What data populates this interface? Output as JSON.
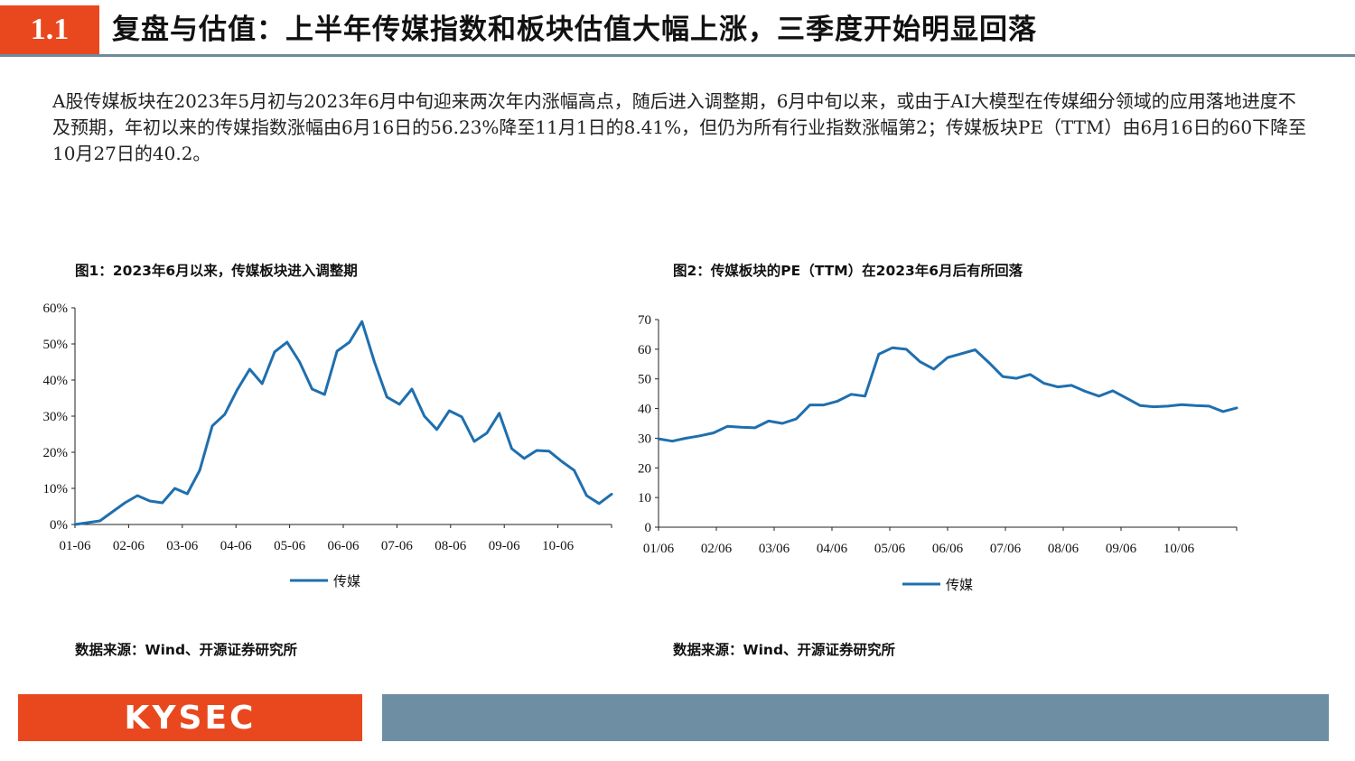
{
  "header": {
    "section_number": "1.1",
    "title": "复盘与估值：上半年传媒指数和板块估值大幅上涨，三季度开始明显回落"
  },
  "intro_text": "A股传媒板块在2023年5月初与2023年6月中旬迎来两次年内涨幅高点，随后进入调整期，6月中旬以来，或由于AI大模型在传媒细分领域的应用落地进度不及预期，年初以来的传媒指数涨幅由6月16日的56.23%降至11月1日的8.41%，但仍为所有行业指数涨幅第2；传媒板块PE（TTM）由6月16日的60下降至10月27日的40.2。",
  "figures": {
    "fig1_caption": "图1：2023年6月以来，传媒板块进入调整期",
    "fig2_caption": "图2：传媒板块的PE（TTM）在2023年6月后有所回落",
    "fig1_source": "数据来源：Wind、开源证券研究所",
    "fig2_source": "数据来源：Wind、开源证券研究所"
  },
  "footer": {
    "logo_text": "KYSEC"
  },
  "colors": {
    "accent": "#e9481f",
    "line": "#1f6fae",
    "bar": "#6e8fa3"
  },
  "chart_data": [
    {
      "type": "line",
      "title": "图1：2023年6月以来，传媒板块进入调整期",
      "x_tick_labels": [
        "01-06",
        "02-06",
        "03-06",
        "04-06",
        "05-06",
        "06-06",
        "07-06",
        "08-06",
        "09-06",
        "10-06"
      ],
      "y_tick_labels": [
        "0%",
        "10%",
        "20%",
        "30%",
        "40%",
        "50%",
        "60%"
      ],
      "ylim": [
        0,
        60
      ],
      "y_unit": "%",
      "legend": "bottom",
      "grid": false,
      "series": [
        {
          "name": "传媒",
          "values": [
            0,
            0.5,
            1,
            3.5,
            6,
            8,
            6.5,
            6,
            10,
            8.5,
            15,
            27.3,
            30.5,
            37.3,
            43,
            39,
            47.8,
            50.5,
            45,
            37.5,
            36,
            48,
            50.5,
            56.2,
            45,
            35.3,
            33.3,
            37.5,
            30,
            26.3,
            31.5,
            29.8,
            23,
            25.3,
            30.8,
            21,
            18.3,
            20.5,
            20.3,
            17.5,
            15,
            8,
            5.8,
            8.4
          ]
        }
      ]
    },
    {
      "type": "line",
      "title": "图2：传媒板块的PE（TTM）在2023年6月后有所回落",
      "x_tick_labels": [
        "01/06",
        "02/06",
        "03/06",
        "04/06",
        "05/06",
        "06/06",
        "07/06",
        "08/06",
        "09/06",
        "10/06"
      ],
      "y_tick_labels": [
        "0",
        "10",
        "20",
        "30",
        "40",
        "50",
        "60",
        "70"
      ],
      "ylim": [
        0,
        70
      ],
      "legend": "bottom",
      "grid": false,
      "series": [
        {
          "name": "传媒",
          "values": [
            29.8,
            29,
            30,
            30.8,
            31.8,
            34,
            33.7,
            33.5,
            35.8,
            35,
            36.5,
            41.2,
            41.2,
            42.5,
            44.8,
            44.2,
            58.3,
            60.5,
            60,
            55.8,
            53.3,
            57.2,
            58.5,
            59.8,
            55.5,
            50.8,
            50.2,
            51.5,
            48.5,
            47.3,
            47.8,
            45.8,
            44.2,
            46,
            43.5,
            41,
            40.6,
            40.8,
            41.3,
            41,
            40.8,
            39,
            40.2
          ]
        }
      ]
    }
  ]
}
